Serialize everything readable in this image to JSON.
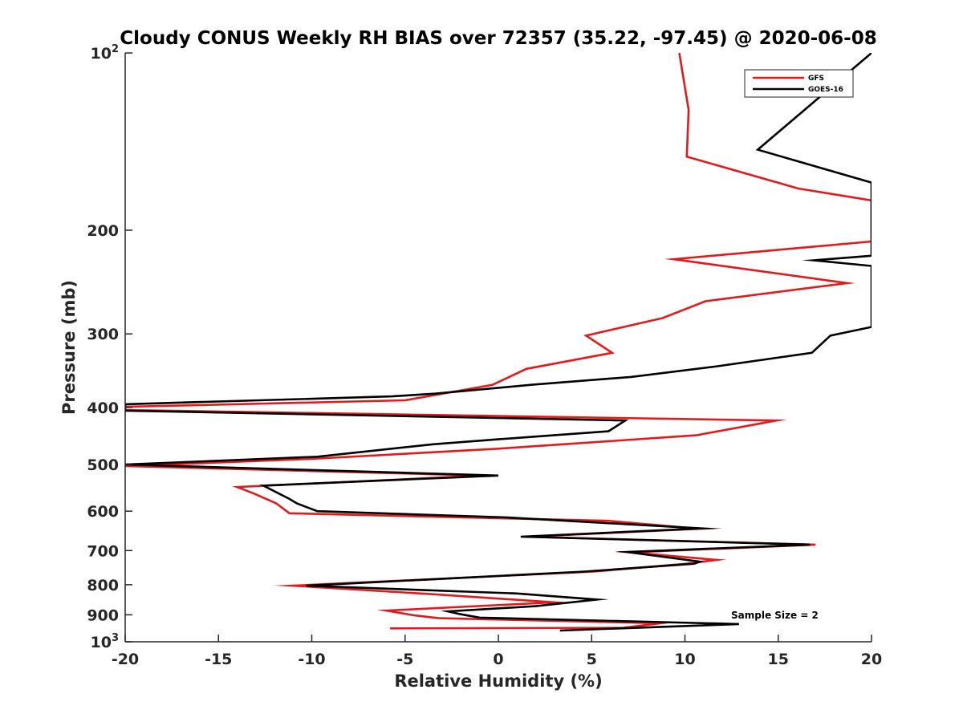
{
  "chart_data": {
    "type": "line",
    "title": "Cloudy CONUS Weekly RH BIAS over 72357 (35.22, -97.45) @ 2020-06-08",
    "xlabel": "Relative Humidity (%)",
    "ylabel": "Pressure (mb)",
    "xlim": [
      -20,
      20
    ],
    "ylim": [
      100,
      1000
    ],
    "y_scale": "log",
    "y_reversed": true,
    "grid": false,
    "legend_position": "top-right",
    "x_ticks": [
      "-20",
      "-15",
      "-10",
      "-5",
      "0",
      "5",
      "10",
      "15",
      "20"
    ],
    "y_ticks": [
      {
        "value": 100,
        "label": "10",
        "sup": "2"
      },
      {
        "value": 200,
        "label": "200",
        "sup": ""
      },
      {
        "value": 300,
        "label": "300",
        "sup": ""
      },
      {
        "value": 400,
        "label": "400",
        "sup": ""
      },
      {
        "value": 500,
        "label": "500",
        "sup": ""
      },
      {
        "value": 600,
        "label": "600",
        "sup": ""
      },
      {
        "value": 700,
        "label": "700",
        "sup": ""
      },
      {
        "value": 800,
        "label": "800",
        "sup": ""
      },
      {
        "value": 900,
        "label": "900",
        "sup": ""
      },
      {
        "value": 1000,
        "label": "10",
        "sup": "3"
      }
    ],
    "annotation": "Sample Size = 2",
    "series": [
      {
        "name": "GFS",
        "color": "#e31a1c",
        "points": [
          [
            9.7,
            100
          ],
          [
            10.2,
            125
          ],
          [
            10.1,
            150
          ],
          [
            16.1,
            170
          ],
          [
            20,
            178
          ],
          [
            20,
            209
          ],
          [
            9.4,
            224
          ],
          [
            18.7,
            246
          ],
          [
            11.1,
            264
          ],
          [
            8.8,
            282
          ],
          [
            4.7,
            302
          ],
          [
            6.1,
            323
          ],
          [
            1.5,
            344
          ],
          [
            -0.3,
            366
          ],
          [
            -5.0,
            389
          ],
          [
            -20,
            399
          ],
          [
            -20,
            404
          ],
          [
            14.9,
            421
          ],
          [
            10.6,
            446
          ],
          [
            0.0,
            470
          ],
          [
            -10.0,
            489
          ],
          [
            -20,
            503
          ],
          [
            -0.8,
            522
          ],
          [
            -14.0,
            546
          ],
          [
            -13.1,
            560
          ],
          [
            -11.9,
            582
          ],
          [
            -11.2,
            605
          ],
          [
            5.9,
            623
          ],
          [
            10.8,
            643
          ],
          [
            1.6,
            663
          ],
          [
            17.0,
            684
          ],
          [
            7.1,
            705
          ],
          [
            11.7,
            726
          ],
          [
            10.1,
            737
          ],
          [
            5.1,
            760
          ],
          [
            -11.0,
            803
          ],
          [
            -3.6,
            830
          ],
          [
            3.0,
            857
          ],
          [
            -6.0,
            885
          ],
          [
            -4.5,
            902
          ],
          [
            -3.2,
            912
          ],
          [
            8.7,
            930
          ],
          [
            6.7,
            947
          ],
          [
            -5.8,
            949
          ]
        ]
      },
      {
        "name": "GOES-16",
        "color": "#000000",
        "points": [
          [
            20,
            100
          ],
          [
            13.9,
            146
          ],
          [
            20,
            166
          ],
          [
            20,
            221
          ],
          [
            16.9,
            225
          ],
          [
            20,
            230
          ],
          [
            20,
            292
          ],
          [
            17.8,
            302
          ],
          [
            16.8,
            323
          ],
          [
            11.6,
            341
          ],
          [
            7.1,
            355
          ],
          [
            1.8,
            366
          ],
          [
            -3.4,
            379
          ],
          [
            -5.7,
            383
          ],
          [
            -20,
            395
          ],
          [
            -20,
            405
          ],
          [
            6.8,
            421
          ],
          [
            5.9,
            439
          ],
          [
            0.0,
            453
          ],
          [
            -3.5,
            462
          ],
          [
            -9.7,
            485
          ],
          [
            -20,
            500
          ],
          [
            0.0,
            522
          ],
          [
            -12.6,
            543
          ],
          [
            -11.2,
            572
          ],
          [
            -10.8,
            582
          ],
          [
            -9.7,
            600
          ],
          [
            0.5,
            615
          ],
          [
            10.9,
            642
          ],
          [
            1.2,
            663
          ],
          [
            16.7,
            684
          ],
          [
            6.9,
            704
          ],
          [
            10.8,
            731
          ],
          [
            10.5,
            737
          ],
          [
            4.6,
            760
          ],
          [
            -10.3,
            803
          ],
          [
            1.0,
            828
          ],
          [
            5.3,
            848
          ],
          [
            2.0,
            870
          ],
          [
            -2.7,
            888
          ],
          [
            -2.1,
            897
          ],
          [
            -1.0,
            910
          ],
          [
            12.9,
            933
          ],
          [
            3.3,
            957
          ]
        ]
      }
    ]
  }
}
